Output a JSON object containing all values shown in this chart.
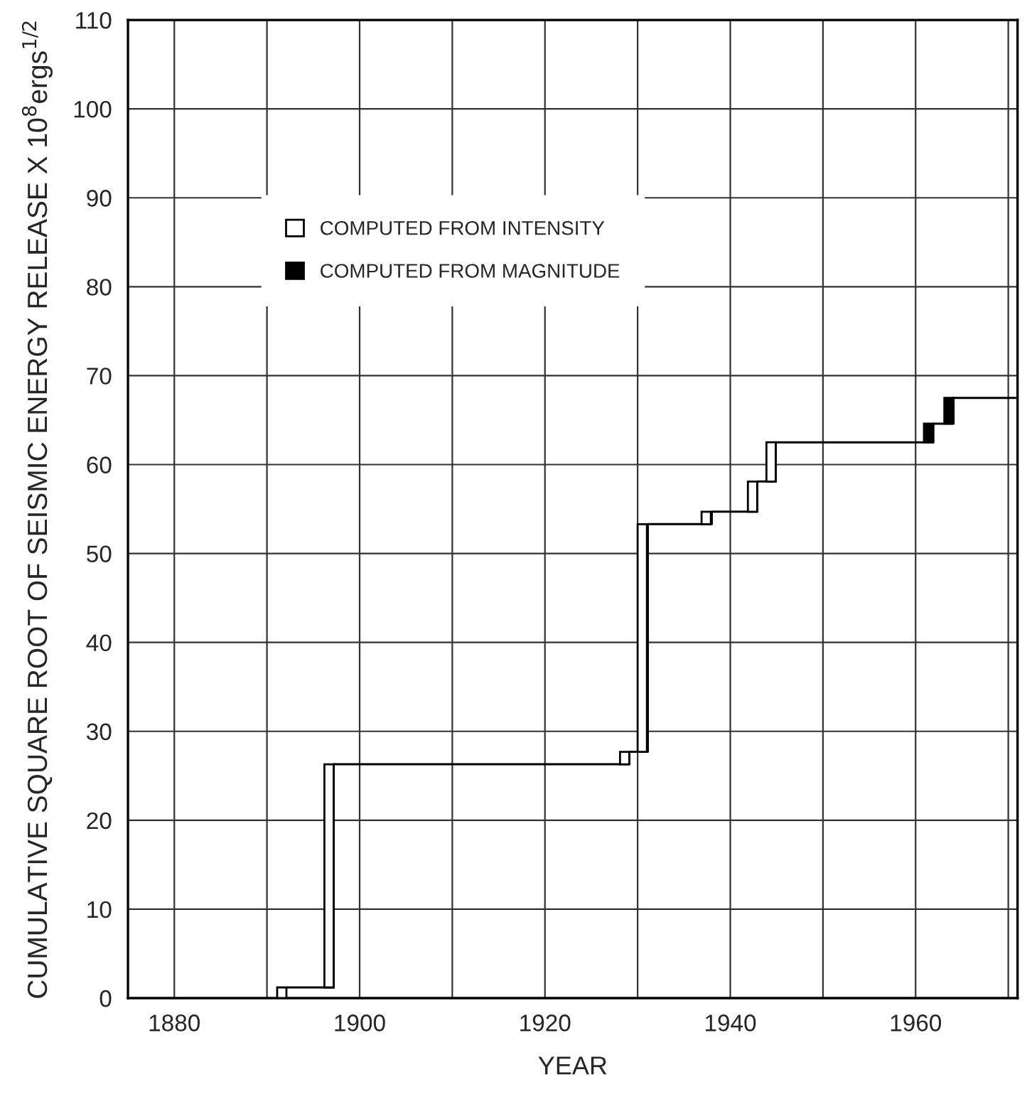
{
  "chart_data": {
    "type": "bar",
    "xlabel": "YEAR",
    "ylabel": "CUMULATIVE SQUARE ROOT OF SEISMIC ENERGY RELEASE X 10$^{8}$ergs$^{1/2}$",
    "xlim": [
      1875,
      1971
    ],
    "xticks": [
      1880,
      {
        "value": 1890,
        "label": null
      },
      1900,
      {
        "value": 1910,
        "label": null
      },
      1920,
      {
        "value": 1930,
        "label": null
      },
      1940,
      {
        "value": 1950,
        "label": null
      },
      1960,
      {
        "value": 1970,
        "label": null
      }
    ],
    "ylim": [
      0,
      110
    ],
    "yticks": [
      0,
      10,
      20,
      30,
      40,
      50,
      60,
      70,
      80,
      90,
      100,
      110
    ],
    "grid": true,
    "legend": "top left",
    "series": [
      {
        "type": "step",
        "color": "#000000",
        "x": [
          1892.2,
          1897.2,
          1929.1,
          1931.1,
          1938.0,
          1942.9,
          1944.9,
          1961.9,
          1964.0,
          1970.8
        ],
        "values": [
          1.2,
          26.3,
          27.7,
          53.3,
          54.7,
          58.1,
          62.5,
          64.6,
          67.5,
          67.5
        ]
      },
      {
        "name": "COMPUTED FROM INTENSITY",
        "color": "#ffffff",
        "x": [
          1891.6,
          1896.7,
          1928.6,
          1930.5,
          1937.4,
          1942.4,
          1944.4
        ],
        "base": [
          0,
          1.2,
          26.3,
          27.7,
          53.3,
          54.7,
          58.1
        ],
        "values": [
          1.2,
          25.1,
          1.4,
          25.6,
          1.4,
          3.4,
          4.4
        ]
      },
      {
        "name": "COMPUTED FROM MAGNITUDE",
        "color": "#000000",
        "x": [
          1961.4,
          1963.6
        ],
        "base": [
          62.5,
          64.6
        ],
        "values": [
          2.1,
          2.9
        ]
      }
    ]
  }
}
